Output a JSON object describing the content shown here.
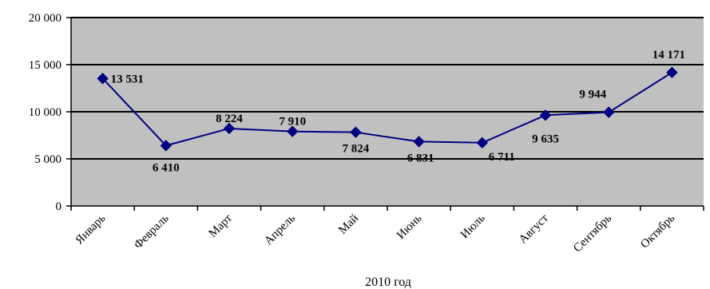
{
  "chart_data": {
    "type": "line",
    "title": "",
    "xlabel": "2010 год",
    "ylabel": "",
    "categories": [
      "Январь",
      "Февраль",
      "Март",
      "Апрель",
      "Май",
      "Июнь",
      "Июль",
      "Август",
      "Сентябрь",
      "Октябрь"
    ],
    "series": [
      {
        "values": [
          13531,
          6410,
          8224,
          7910,
          7824,
          6831,
          6711,
          9635,
          9944,
          14171
        ],
        "data_labels": [
          "13 531",
          "6 410",
          "8 224",
          "7 910",
          "7 824",
          "6 831",
          "6 711",
          "9 635",
          "9 944",
          "14 171"
        ]
      }
    ],
    "ylim": [
      0,
      20000
    ],
    "yticks": [
      0,
      5000,
      10000,
      15000,
      20000
    ],
    "ytick_labels": [
      "0",
      "5 000",
      "10 000",
      "15 000",
      "20 000"
    ],
    "grid": true,
    "legend": "none",
    "colors": {
      "plot_background": "#C0C0C0",
      "line": "#000080",
      "marker": "#000080",
      "gridline": "#000000"
    }
  }
}
